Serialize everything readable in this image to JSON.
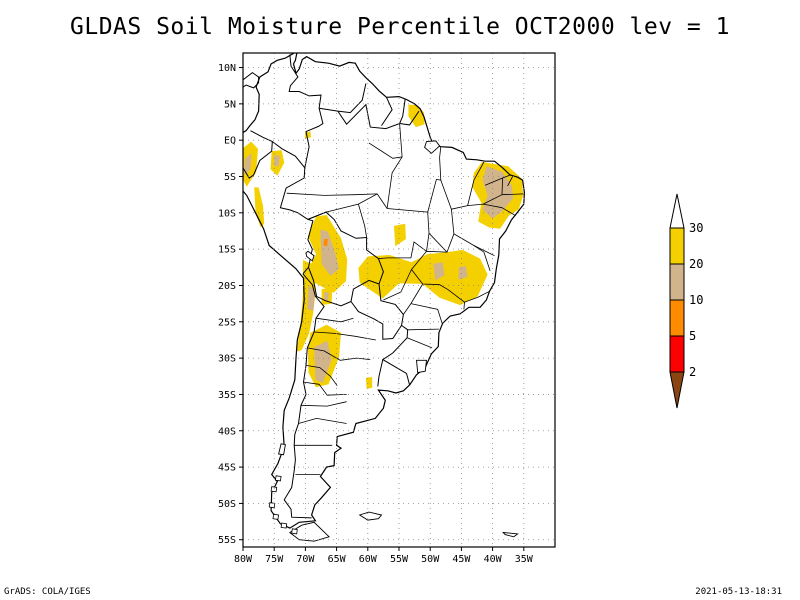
{
  "title": "GLDAS Soil Moisture Percentile OCT2000 lev = 1",
  "footer": {
    "left": "GrADS: COLA/IGES",
    "right": "2021-05-13-18:31"
  },
  "map": {
    "lon_range": [
      -80,
      -30
    ],
    "lat_range": [
      -56,
      12
    ],
    "lat_ticks": [
      {
        "value": 10,
        "label": "10N"
      },
      {
        "value": 5,
        "label": "5N"
      },
      {
        "value": 0,
        "label": "EQ"
      },
      {
        "value": -5,
        "label": "5S"
      },
      {
        "value": -10,
        "label": "10S"
      },
      {
        "value": -15,
        "label": "15S"
      },
      {
        "value": -20,
        "label": "20S"
      },
      {
        "value": -25,
        "label": "25S"
      },
      {
        "value": -30,
        "label": "30S"
      },
      {
        "value": -35,
        "label": "35S"
      },
      {
        "value": -40,
        "label": "40S"
      },
      {
        "value": -45,
        "label": "45S"
      },
      {
        "value": -50,
        "label": "50S"
      },
      {
        "value": -55,
        "label": "55S"
      }
    ],
    "lon_ticks": [
      {
        "value": -80,
        "label": "80W"
      },
      {
        "value": -75,
        "label": "75W"
      },
      {
        "value": -70,
        "label": "70W"
      },
      {
        "value": -65,
        "label": "65W"
      },
      {
        "value": -60,
        "label": "60W"
      },
      {
        "value": -55,
        "label": "55W"
      },
      {
        "value": -50,
        "label": "50W"
      },
      {
        "value": -45,
        "label": "45W"
      },
      {
        "value": -40,
        "label": "40W"
      },
      {
        "value": -35,
        "label": "35W"
      }
    ],
    "grid": "dotted"
  },
  "colorbar": {
    "labels": [
      "30",
      "20",
      "10",
      "5",
      "2"
    ],
    "colors": [
      "#f5d000",
      "#d2b48c",
      "#ff8c00",
      "#ff0000",
      "#8b4513"
    ],
    "top_color": "#ffffff"
  },
  "colors": {
    "c30": "#f5d000",
    "c20": "#d2b48c",
    "c10": "#ff8c00",
    "land": "#ffffff",
    "coast": "#000000"
  }
}
